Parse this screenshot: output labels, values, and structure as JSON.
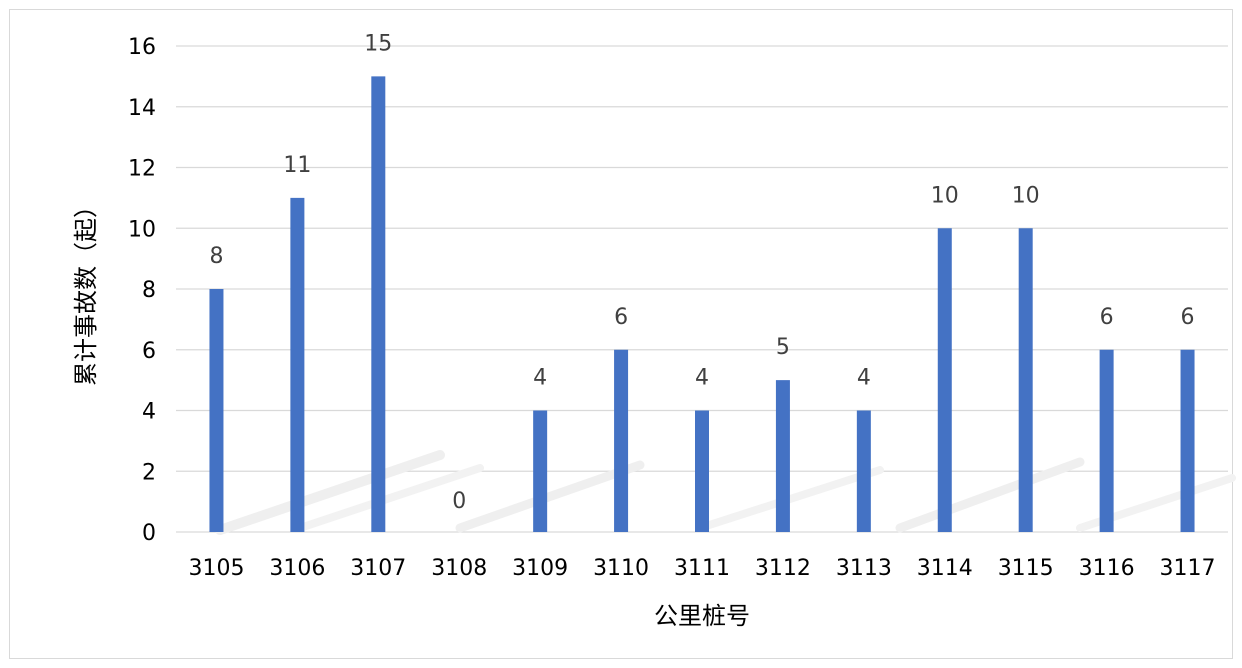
{
  "chart_data": {
    "type": "bar",
    "title": "",
    "xlabel": "公里桩号",
    "ylabel": "累计事故数（起）",
    "categories": [
      "3105",
      "3106",
      "3107",
      "3108",
      "3109",
      "3110",
      "3111",
      "3112",
      "3113",
      "3114",
      "3115",
      "3116",
      "3117"
    ],
    "values": [
      8,
      11,
      15,
      0,
      4,
      6,
      4,
      5,
      4,
      10,
      10,
      6,
      6
    ],
    "ylim": [
      0,
      16
    ],
    "yticks": [
      0,
      2,
      4,
      6,
      8,
      10,
      12,
      14,
      16
    ],
    "grid": true,
    "legend": "none",
    "data_labels": true,
    "colors": {
      "bar": "#4472c4",
      "grid": "#d9d9d9",
      "data_label": "#404040"
    }
  }
}
